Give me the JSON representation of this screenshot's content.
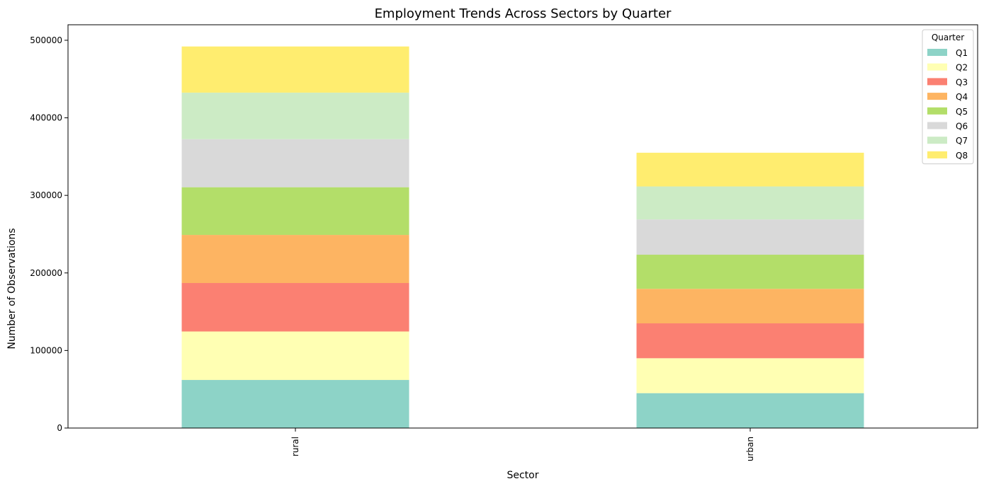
{
  "chart_data": {
    "type": "bar",
    "stacked": true,
    "title": "Employment Trends Across Sectors by Quarter",
    "xlabel": "Sector",
    "ylabel": "Number of Observations",
    "categories": [
      "rural",
      "urban"
    ],
    "ylim": [
      0,
      520000
    ],
    "yticks": [
      0,
      100000,
      200000,
      300000,
      400000,
      500000
    ],
    "ytick_labels": [
      "0",
      "100000",
      "200000",
      "300000",
      "400000",
      "500000"
    ],
    "grid": false,
    "legend": {
      "title": "Quarter",
      "placement": "top-right"
    },
    "series": [
      {
        "name": "Q1",
        "color": "#8dd3c7",
        "values": [
          62000,
          45000
        ]
      },
      {
        "name": "Q2",
        "color": "#ffffb3",
        "values": [
          62500,
          45000
        ]
      },
      {
        "name": "Q3",
        "color": "#fb8072",
        "values": [
          62500,
          45000
        ]
      },
      {
        "name": "Q4",
        "color": "#fdb462",
        "values": [
          62000,
          44500
        ]
      },
      {
        "name": "Q5",
        "color": "#b3de69",
        "values": [
          61500,
          44000
        ]
      },
      {
        "name": "Q6",
        "color": "#d9d9d9",
        "values": [
          62000,
          45500
        ]
      },
      {
        "name": "Q7",
        "color": "#ccebc5",
        "values": [
          60000,
          42500
        ]
      },
      {
        "name": "Q8",
        "color": "#ffed6f",
        "values": [
          59500,
          43500
        ]
      }
    ]
  }
}
